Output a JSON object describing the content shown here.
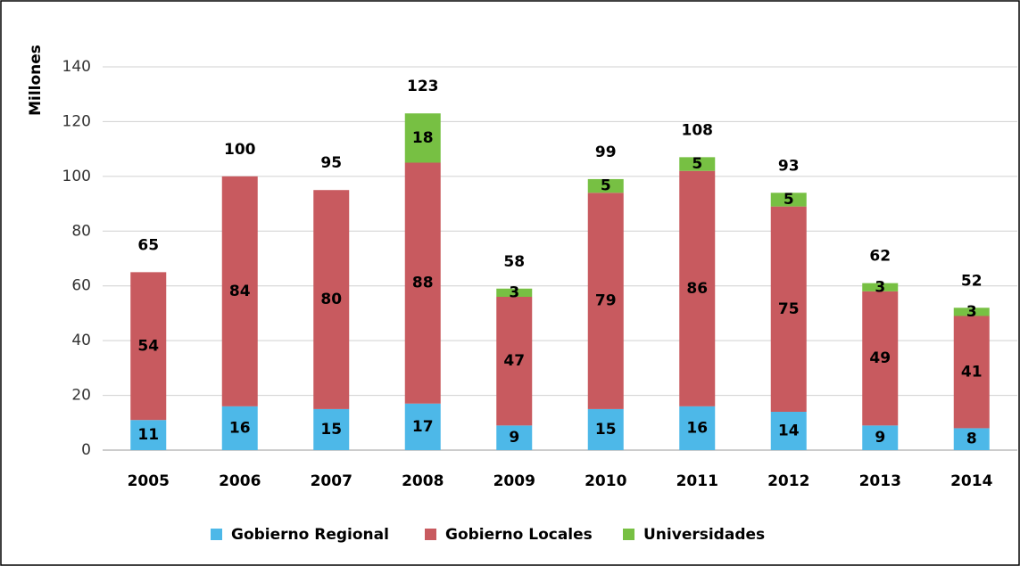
{
  "chart_data": {
    "type": "bar",
    "stacked": true,
    "y_label": "Millones",
    "categories": [
      "2005",
      "2006",
      "2007",
      "2008",
      "2009",
      "2010",
      "2011",
      "2012",
      "2013",
      "2014"
    ],
    "series": [
      {
        "name": "Gobierno Regional",
        "color": "#4db8e8",
        "values": [
          11,
          16,
          15,
          17,
          9,
          15,
          16,
          14,
          9,
          8
        ]
      },
      {
        "name": "Gobierno Locales",
        "color": "#c85a5f",
        "values": [
          54,
          84,
          80,
          88,
          47,
          79,
          86,
          75,
          49,
          41
        ]
      },
      {
        "name": "Universidades",
        "color": "#77c043",
        "values": [
          null,
          null,
          null,
          18,
          3,
          5,
          5,
          5,
          3,
          3
        ]
      }
    ],
    "totals": [
      65,
      100,
      95,
      123,
      58,
      99,
      108,
      93,
      62,
      52
    ],
    "ylim": [
      0,
      140
    ],
    "yticks": [
      0,
      20,
      40,
      60,
      80,
      100,
      120,
      140
    ],
    "grid": true,
    "legend": "bottom"
  }
}
